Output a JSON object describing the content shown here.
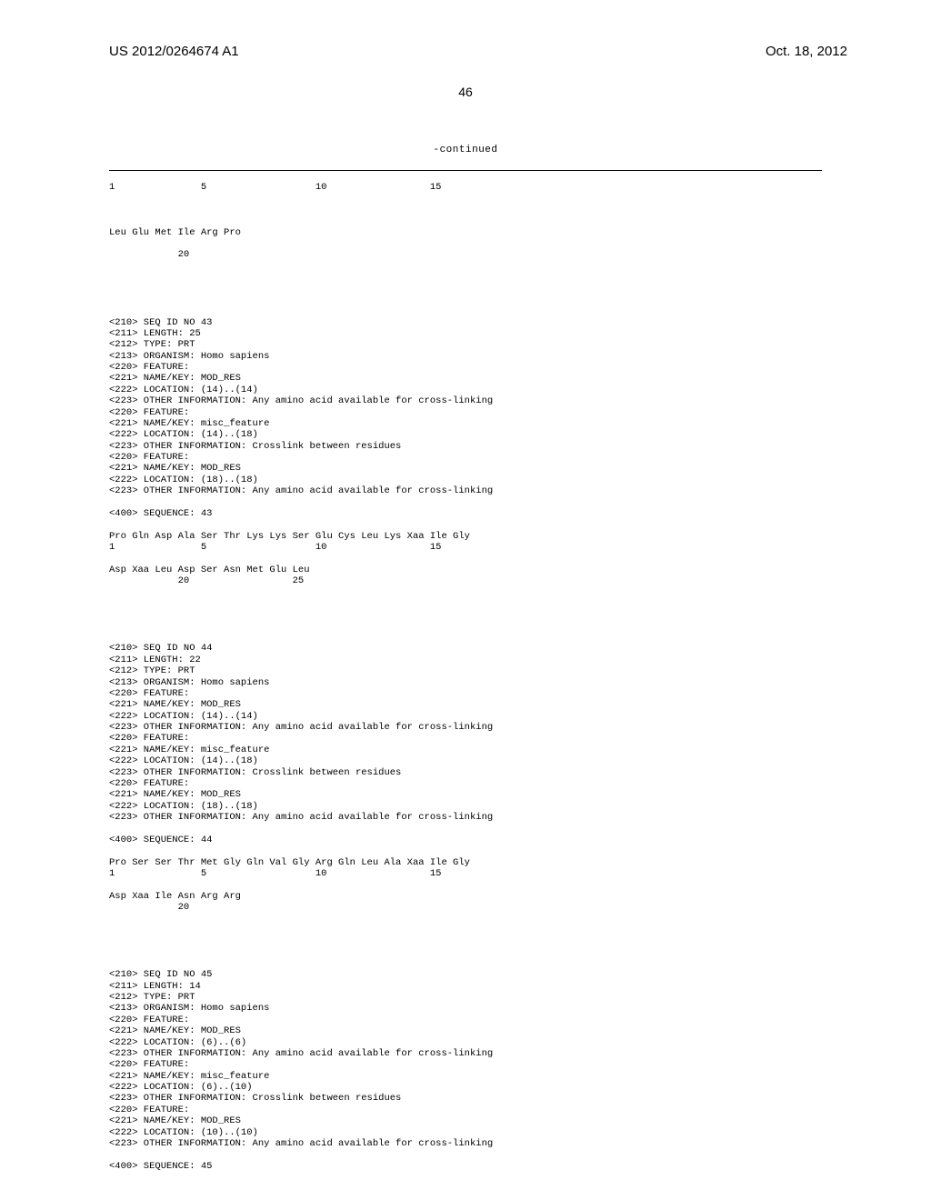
{
  "header": {
    "publication_number": "US 2012/0264674 A1",
    "publication_date": "Oct. 18, 2012"
  },
  "page_number": "46",
  "continued": "-continued",
  "seq42_positions": "1               5                   10                  15",
  "seq42_residues": "Leu Glu Met Ile Arg Pro",
  "seq42_pos2": "            20",
  "seq43_meta": [
    "<210> SEQ ID NO 43",
    "<211> LENGTH: 25",
    "<212> TYPE: PRT",
    "<213> ORGANISM: Homo sapiens",
    "<220> FEATURE:",
    "<221> NAME/KEY: MOD_RES",
    "<222> LOCATION: (14)..(14)",
    "<223> OTHER INFORMATION: Any amino acid available for cross-linking",
    "<220> FEATURE:",
    "<221> NAME/KEY: misc_feature",
    "<222> LOCATION: (14)..(18)",
    "<223> OTHER INFORMATION: Crosslink between residues",
    "<220> FEATURE:",
    "<221> NAME/KEY: MOD_RES",
    "<222> LOCATION: (18)..(18)",
    "<223> OTHER INFORMATION: Any amino acid available for cross-linking",
    "",
    "<400> SEQUENCE: 43",
    "",
    "Pro Gln Asp Ala Ser Thr Lys Lys Ser Glu Cys Leu Lys Xaa Ile Gly",
    "1               5                   10                  15",
    "",
    "Asp Xaa Leu Asp Ser Asn Met Glu Leu",
    "            20                  25"
  ],
  "seq44_meta": [
    "<210> SEQ ID NO 44",
    "<211> LENGTH: 22",
    "<212> TYPE: PRT",
    "<213> ORGANISM: Homo sapiens",
    "<220> FEATURE:",
    "<221> NAME/KEY: MOD_RES",
    "<222> LOCATION: (14)..(14)",
    "<223> OTHER INFORMATION: Any amino acid available for cross-linking",
    "<220> FEATURE:",
    "<221> NAME/KEY: misc_feature",
    "<222> LOCATION: (14)..(18)",
    "<223> OTHER INFORMATION: Crosslink between residues",
    "<220> FEATURE:",
    "<221> NAME/KEY: MOD_RES",
    "<222> LOCATION: (18)..(18)",
    "<223> OTHER INFORMATION: Any amino acid available for cross-linking",
    "",
    "<400> SEQUENCE: 44",
    "",
    "Pro Ser Ser Thr Met Gly Gln Val Gly Arg Gln Leu Ala Xaa Ile Gly",
    "1               5                   10                  15",
    "",
    "Asp Xaa Ile Asn Arg Arg",
    "            20"
  ],
  "seq45_meta": [
    "<210> SEQ ID NO 45",
    "<211> LENGTH: 14",
    "<212> TYPE: PRT",
    "<213> ORGANISM: Homo sapiens",
    "<220> FEATURE:",
    "<221> NAME/KEY: MOD_RES",
    "<222> LOCATION: (6)..(6)",
    "<223> OTHER INFORMATION: Any amino acid available for cross-linking",
    "<220> FEATURE:",
    "<221> NAME/KEY: misc_feature",
    "<222> LOCATION: (6)..(10)",
    "<223> OTHER INFORMATION: Crosslink between residues",
    "<220> FEATURE:",
    "<221> NAME/KEY: MOD_RES",
    "<222> LOCATION: (10)..(10)",
    "<223> OTHER INFORMATION: Any amino acid available for cross-linking",
    "",
    "<400> SEQUENCE: 45"
  ]
}
